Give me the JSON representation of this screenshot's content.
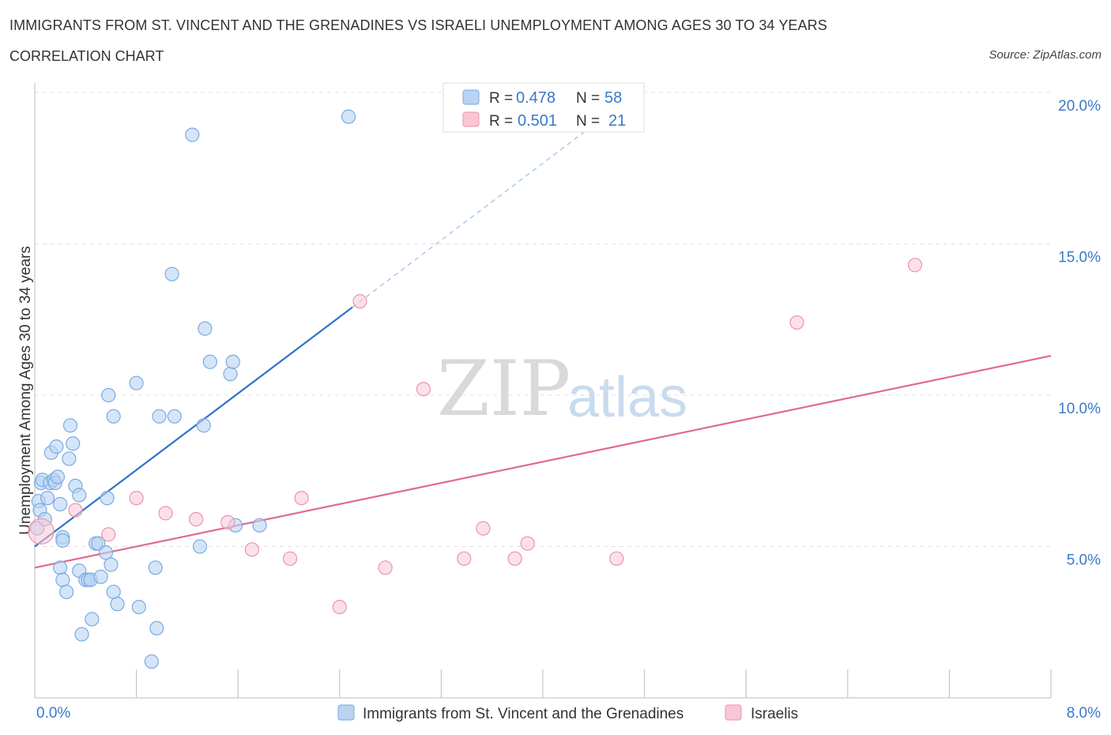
{
  "header": {
    "title": "IMMIGRANTS FROM ST. VINCENT AND THE GRENADINES VS ISRAELI UNEMPLOYMENT AMONG AGES 30 TO 34 YEARS",
    "subtitle": "CORRELATION CHART",
    "source": "Source: ZipAtlas.com"
  },
  "watermark": {
    "zip": "ZIP",
    "atlas": "atlas"
  },
  "legend_top": {
    "rows": [
      {
        "r_label": "R = ",
        "r_value": "0.478",
        "n_label": "N = ",
        "n_value": "58"
      },
      {
        "r_label": "R = ",
        "r_value": "0.501",
        "n_label": "N = ",
        "n_value": "21"
      }
    ]
  },
  "legend_bottom": {
    "items": [
      {
        "label": "Immigrants from St. Vincent and the Grenadines"
      },
      {
        "label": "Israelis"
      }
    ]
  },
  "colors": {
    "blue_fill": "#b9d3f3",
    "blue_stroke": "#7aaae0",
    "blue_line": "#2e72c8",
    "pink_fill": "#f9c6d5",
    "pink_stroke": "#ec93ae",
    "pink_line": "#e06a93",
    "tick_text": "#3a78c8",
    "grid": "#e0e0e0"
  },
  "chart_data": {
    "type": "scatter",
    "title": "IMMIGRANTS FROM ST. VINCENT AND THE GRENADINES VS ISRAELI UNEMPLOYMENT AMONG AGES 30 TO 34 YEARS",
    "ylabel": "Unemployment Among Ages 30 to 34 years",
    "xlabel": "",
    "xlim": [
      0,
      8
    ],
    "ylim": [
      0,
      20
    ],
    "x_tick_labels": [
      "0.0%",
      "8.0%"
    ],
    "y_ticks": [
      5,
      10,
      15,
      20
    ],
    "y_tick_labels": [
      "5.0%",
      "10.0%",
      "15.0%",
      "20.0%"
    ],
    "grid": "horizontal dashed",
    "series": [
      {
        "name": "Immigrants from St. Vincent and the Grenadines",
        "R": 0.478,
        "N": 58,
        "trend": {
          "x": [
            0.0,
            2.5
          ],
          "y": [
            5.0,
            12.9
          ],
          "dashed_extension": {
            "x": [
              2.5,
              4.8
            ],
            "y": [
              12.9,
              20.2
            ]
          }
        },
        "points": [
          [
            0.02,
            5.6
          ],
          [
            0.03,
            6.5
          ],
          [
            0.04,
            6.2
          ],
          [
            0.05,
            7.1
          ],
          [
            0.06,
            7.2
          ],
          [
            0.08,
            5.9
          ],
          [
            0.1,
            6.6
          ],
          [
            0.12,
            7.1
          ],
          [
            0.13,
            8.1
          ],
          [
            0.15,
            7.2
          ],
          [
            0.16,
            7.1
          ],
          [
            0.17,
            8.3
          ],
          [
            0.18,
            7.3
          ],
          [
            0.2,
            6.4
          ],
          [
            0.22,
            5.3
          ],
          [
            0.2,
            4.3
          ],
          [
            0.22,
            3.9
          ],
          [
            0.25,
            3.5
          ],
          [
            0.27,
            7.9
          ],
          [
            0.28,
            9.0
          ],
          [
            0.3,
            8.4
          ],
          [
            0.32,
            7.0
          ],
          [
            0.35,
            6.7
          ],
          [
            0.35,
            4.2
          ],
          [
            0.37,
            2.1
          ],
          [
            0.4,
            3.9
          ],
          [
            0.42,
            3.9
          ],
          [
            0.44,
            3.9
          ],
          [
            0.45,
            2.6
          ],
          [
            0.48,
            5.1
          ],
          [
            0.5,
            5.1
          ],
          [
            0.52,
            4.0
          ],
          [
            0.56,
            4.8
          ],
          [
            0.57,
            6.6
          ],
          [
            0.58,
            10.0
          ],
          [
            0.6,
            4.4
          ],
          [
            0.62,
            3.5
          ],
          [
            0.62,
            9.3
          ],
          [
            0.65,
            3.1
          ],
          [
            0.8,
            10.4
          ],
          [
            0.82,
            3.0
          ],
          [
            0.92,
            1.2
          ],
          [
            0.95,
            4.3
          ],
          [
            0.96,
            2.3
          ],
          [
            0.98,
            9.3
          ],
          [
            1.1,
            9.3
          ],
          [
            1.08,
            14.0
          ],
          [
            1.24,
            18.6
          ],
          [
            1.3,
            5.0
          ],
          [
            1.33,
            9.0
          ],
          [
            1.34,
            12.2
          ],
          [
            1.38,
            11.1
          ],
          [
            1.54,
            10.7
          ],
          [
            1.56,
            11.1
          ],
          [
            1.58,
            5.7
          ],
          [
            1.77,
            5.7
          ],
          [
            2.47,
            19.2
          ],
          [
            0.22,
            5.2
          ]
        ]
      },
      {
        "name": "Israelis",
        "R": 0.501,
        "N": 21,
        "trend": {
          "x": [
            0.0,
            8.0
          ],
          "y": [
            4.3,
            11.3
          ]
        },
        "points": [
          [
            0.05,
            5.5
          ],
          [
            0.32,
            6.2
          ],
          [
            0.58,
            5.4
          ],
          [
            0.8,
            6.6
          ],
          [
            1.03,
            6.1
          ],
          [
            1.27,
            5.9
          ],
          [
            1.52,
            5.8
          ],
          [
            1.71,
            4.9
          ],
          [
            2.01,
            4.6
          ],
          [
            2.1,
            6.6
          ],
          [
            2.4,
            3.0
          ],
          [
            2.56,
            13.1
          ],
          [
            2.76,
            4.3
          ],
          [
            3.06,
            10.2
          ],
          [
            3.38,
            4.6
          ],
          [
            3.53,
            5.6
          ],
          [
            3.78,
            4.6
          ],
          [
            3.88,
            5.1
          ],
          [
            4.58,
            4.6
          ],
          [
            6.0,
            12.4
          ],
          [
            6.93,
            14.3
          ]
        ]
      }
    ]
  }
}
